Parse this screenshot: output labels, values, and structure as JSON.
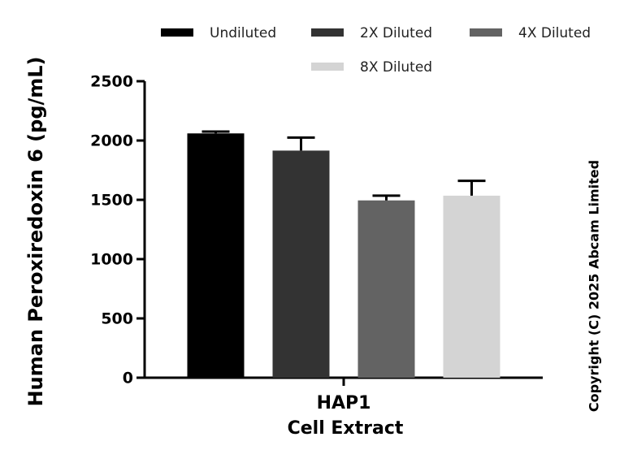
{
  "chart_data": {
    "type": "bar",
    "y_label": "Human Peroxiredoxin 6 (pg/mL)",
    "x_label": "Cell Extract",
    "categories": [
      "HAP1"
    ],
    "series": [
      {
        "name": "Undiluted",
        "color": "#000000",
        "values": [
          2060
        ],
        "errors": [
          15
        ]
      },
      {
        "name": "2X Diluted",
        "color": "#333333",
        "values": [
          1915
        ],
        "errors": [
          110
        ]
      },
      {
        "name": "4X Diluted",
        "color": "#636363",
        "values": [
          1495
        ],
        "errors": [
          40
        ]
      },
      {
        "name": "8X Diluted",
        "color": "#d4d4d4",
        "values": [
          1535
        ],
        "errors": [
          125
        ]
      }
    ],
    "ylim": [
      0,
      2500
    ],
    "yticks": [
      0,
      500,
      1000,
      1500,
      2000,
      2500
    ],
    "legend": "top",
    "annotation": "Copyright (C) 2025 Abcam Limited"
  }
}
